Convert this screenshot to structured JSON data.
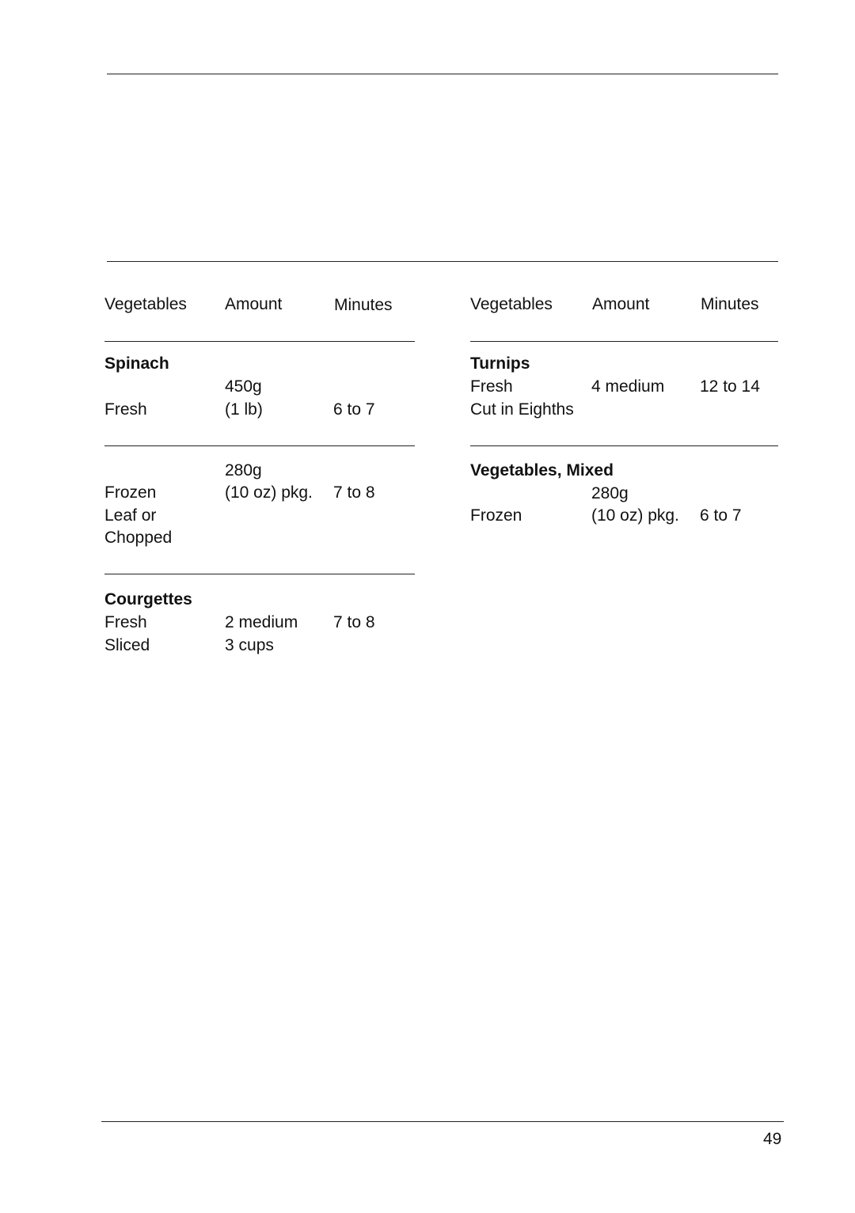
{
  "left_table": {
    "headers": [
      "Vegetables",
      "Amount",
      "Minutes"
    ],
    "spinach": {
      "title": "Spinach",
      "fresh": {
        "amount_metric": "450g",
        "label": "Fresh",
        "amount": "(1 lb)",
        "minutes": "6 to 7"
      },
      "frozen": {
        "amount_metric": "280g",
        "label": "Frozen",
        "amount": "(10 oz) pkg.",
        "minutes": "7 to 8",
        "note1": "Leaf or",
        "note2": "Chopped"
      }
    },
    "courgettes": {
      "title": "Courgettes",
      "label": "Fresh",
      "amount": "2 medium",
      "minutes": "7 to 8",
      "note": "Sliced",
      "amount2": "3 cups"
    }
  },
  "right_table": {
    "headers": [
      "Vegetables",
      "Amount",
      "Minutes"
    ],
    "turnips": {
      "title": "Turnips",
      "label": "Fresh",
      "amount": "4 medium",
      "minutes": "12 to 14",
      "note": "Cut in Eighths"
    },
    "mixed": {
      "title": "Vegetables, Mixed",
      "amount_metric": "280g",
      "label": "Frozen",
      "amount": "(10 oz) pkg.",
      "minutes": "6 to 7"
    }
  },
  "page_number": "49"
}
